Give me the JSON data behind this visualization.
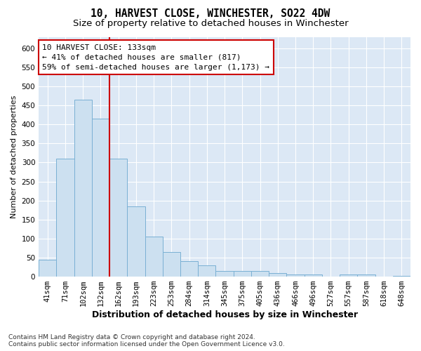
{
  "title": "10, HARVEST CLOSE, WINCHESTER, SO22 4DW",
  "subtitle": "Size of property relative to detached houses in Winchester",
  "xlabel": "Distribution of detached houses by size in Winchester",
  "ylabel": "Number of detached properties",
  "bin_labels": [
    "41sqm",
    "71sqm",
    "102sqm",
    "132sqm",
    "162sqm",
    "193sqm",
    "223sqm",
    "253sqm",
    "284sqm",
    "314sqm",
    "345sqm",
    "375sqm",
    "405sqm",
    "436sqm",
    "466sqm",
    "496sqm",
    "527sqm",
    "557sqm",
    "587sqm",
    "618sqm",
    "648sqm"
  ],
  "bar_values": [
    45,
    310,
    465,
    415,
    310,
    185,
    105,
    65,
    40,
    30,
    15,
    15,
    15,
    10,
    5,
    5,
    0,
    5,
    5,
    0,
    2
  ],
  "bar_color": "#cce0f0",
  "bar_edge_color": "#7ab0d4",
  "bar_edge_width": 0.7,
  "property_line_color": "#cc0000",
  "annotation_text": "10 HARVEST CLOSE: 133sqm\n← 41% of detached houses are smaller (817)\n59% of semi-detached houses are larger (1,173) →",
  "annotation_box_color": "#ffffff",
  "annotation_box_edge_color": "#cc0000",
  "ylim": [
    0,
    630
  ],
  "yticks": [
    0,
    50,
    100,
    150,
    200,
    250,
    300,
    350,
    400,
    450,
    500,
    550,
    600
  ],
  "fig_bg_color": "#ffffff",
  "plot_bg_color": "#dce8f5",
  "grid_color": "#ffffff",
  "footnote": "Contains HM Land Registry data © Crown copyright and database right 2024.\nContains public sector information licensed under the Open Government Licence v3.0.",
  "title_fontsize": 10.5,
  "subtitle_fontsize": 9.5,
  "xlabel_fontsize": 9,
  "ylabel_fontsize": 8,
  "tick_fontsize": 7.5,
  "annot_fontsize": 8,
  "footnote_fontsize": 6.5
}
